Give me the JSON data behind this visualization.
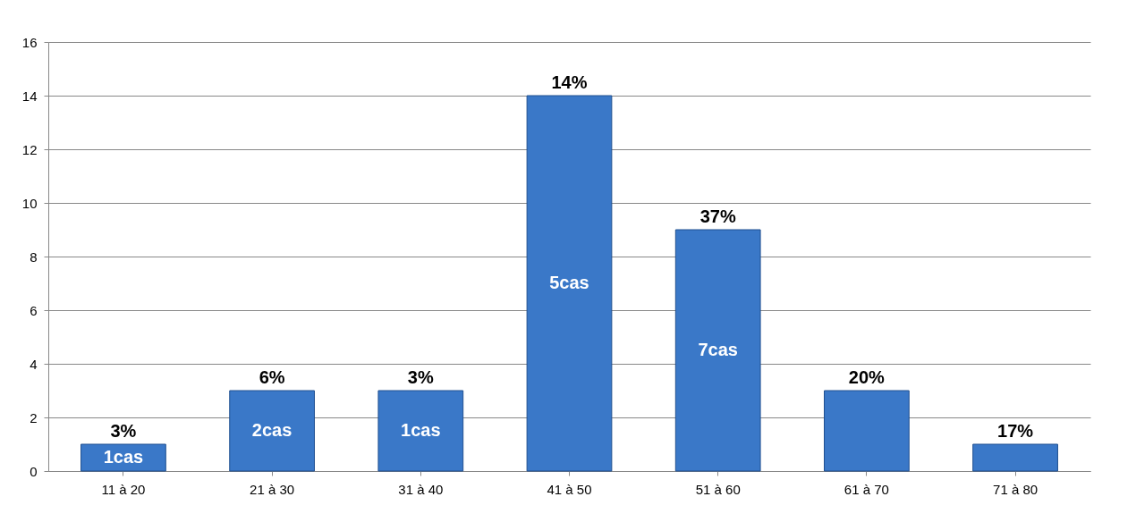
{
  "chart_data": {
    "type": "bar",
    "categories": [
      "11 à 20",
      "21 à 30",
      "31 à 40",
      "41 à 50",
      "51 à 60",
      "61 à 70",
      "71 à 80"
    ],
    "values": [
      1,
      3,
      3,
      14,
      9,
      3,
      1
    ],
    "color": "#3a78c8",
    "ylim": [
      0,
      16
    ],
    "yticks": [
      0,
      2,
      4,
      6,
      8,
      10,
      12,
      14,
      16
    ],
    "grid": "y",
    "annotations": [
      "3%",
      "6%",
      "3%",
      "14%",
      "37%",
      "20%",
      "17%",
      "1cas",
      "2cas",
      "1cas",
      "5cas",
      "7cas"
    ]
  }
}
